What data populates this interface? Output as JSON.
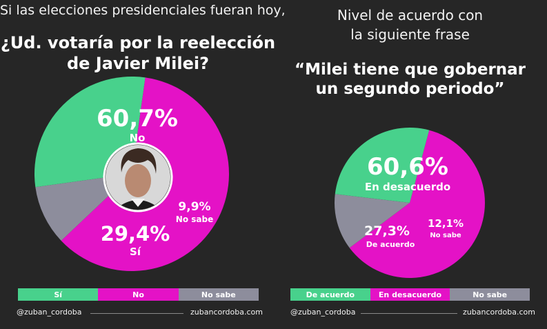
{
  "left": {
    "subtitle": "Si las elecciones presidenciales fueran hoy,",
    "question_line1": "¿Ud. votaría por la reelección",
    "question_line2": "de Javier Milei?",
    "handle": "@zuban_cordoba",
    "website": "zubancordoba.com"
  },
  "right": {
    "subtitle_line1": "Nivel de acuerdo con",
    "subtitle_line2": "la siguiente frase",
    "quote_line1": "“Milei tiene que gobernar",
    "quote_line2": "un segundo periodo”",
    "handle": "@zuban_cordoba",
    "website": "zubancordoba.com"
  },
  "colors": {
    "background": "#262626",
    "magenta": "#e412c6",
    "green": "#48d18c",
    "gray": "#8d8d9c"
  },
  "icons": {
    "avatar": "portrait-photo"
  },
  "chart_data": [
    {
      "type": "pie",
      "slices": [
        {
          "label": "No",
          "value": 60.7,
          "value_label": "60,7%",
          "color": "#e412c6"
        },
        {
          "label": "No sabe",
          "value": 9.9,
          "value_label": "9,9%",
          "color": "#8d8d9c"
        },
        {
          "label": "Sí",
          "value": 29.4,
          "value_label": "29,4%",
          "color": "#48d18c"
        }
      ],
      "legend": [
        "Sí",
        "No",
        "No sabe"
      ],
      "legend_placement": "bottom"
    },
    {
      "type": "pie",
      "slices": [
        {
          "label": "En desacuerdo",
          "value": 60.6,
          "value_label": "60,6%",
          "color": "#e412c6"
        },
        {
          "label": "No sabe",
          "value": 12.1,
          "value_label": "12,1%",
          "color": "#8d8d9c"
        },
        {
          "label": "De acuerdo",
          "value": 27.3,
          "value_label": "27,3%",
          "color": "#48d18c"
        }
      ],
      "legend": [
        "De acuerdo",
        "En desacuerdo",
        "No sabe"
      ],
      "legend_placement": "bottom"
    }
  ]
}
